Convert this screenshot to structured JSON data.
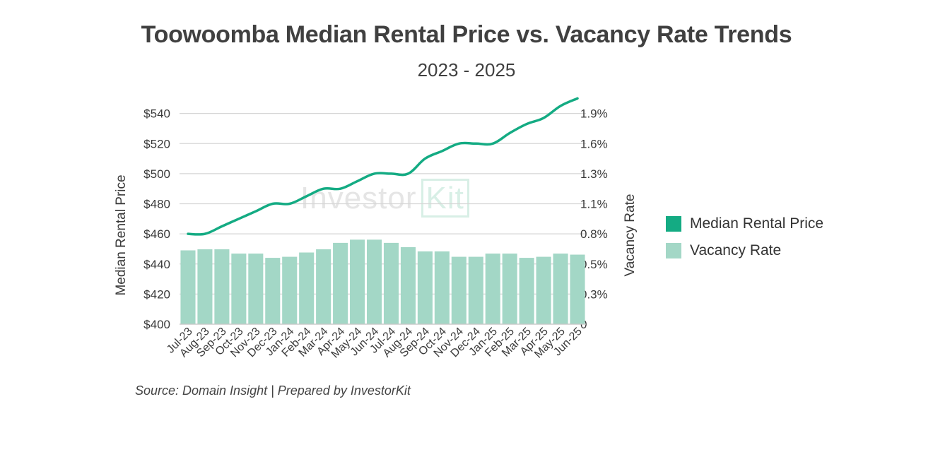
{
  "title": "Toowoomba Median Rental Price vs. Vacancy Rate Trends",
  "subtitle": "2023 - 2025",
  "source": "Source: Domain Insight | Prepared by InvestorKit",
  "watermark": {
    "text1": "Investor",
    "text2": "Kit"
  },
  "colors": {
    "line": "#14ab83",
    "bar": "#a3d7c6",
    "grid": "#d6d6d6",
    "text": "#3a3a3a"
  },
  "legend": [
    {
      "label": "Median Rental Price",
      "color": "#14ab83"
    },
    {
      "label": "Vacancy Rate",
      "color": "#a3d7c6"
    }
  ],
  "chart_data": {
    "type": "bar+line",
    "title": "Toowoomba Median Rental Price vs. Vacancy Rate Trends",
    "subtitle": "2023 - 2025",
    "categories": [
      "Jul-23",
      "Aug-23",
      "Sep-23",
      "Oct-23",
      "Nov-23",
      "Dec-23",
      "Jan-24",
      "Feb-24",
      "Mar-24",
      "Apr-24",
      "May-24",
      "Jun-24",
      "Jul-24",
      "Aug-24",
      "Sep-24",
      "Oct-24",
      "Nov-24",
      "Dec-24",
      "Jan-25",
      "Feb-25",
      "Mar-25",
      "Apr-25",
      "May-25",
      "Jun-25"
    ],
    "series": [
      {
        "name": "Median Rental Price",
        "type": "line",
        "axis": "left",
        "values": [
          460,
          460,
          465,
          470,
          475,
          480,
          480,
          485,
          490,
          490,
          495,
          500,
          500,
          500,
          510,
          515,
          520,
          520,
          520,
          527,
          533,
          537,
          545,
          550
        ]
      },
      {
        "name": "Vacancy Rate",
        "type": "bar",
        "axis": "right",
        "values": [
          0.69,
          0.7,
          0.7,
          0.66,
          0.66,
          0.62,
          0.63,
          0.67,
          0.7,
          0.76,
          0.79,
          0.79,
          0.76,
          0.72,
          0.68,
          0.68,
          0.63,
          0.63,
          0.66,
          0.66,
          0.62,
          0.63,
          0.66,
          0.65
        ]
      }
    ],
    "ylabel": "Median Rental Price",
    "y2label": "Vacancy Rate",
    "ylim": [
      400,
      545
    ],
    "y2lim": [
      0,
      2.04
    ],
    "left_ticks": [
      {
        "v": 400,
        "label": "$400"
      },
      {
        "v": 420,
        "label": "$420"
      },
      {
        "v": 440,
        "label": "$440"
      },
      {
        "v": 460,
        "label": "$460"
      },
      {
        "v": 480,
        "label": "$480"
      },
      {
        "v": 500,
        "label": "$500"
      },
      {
        "v": 520,
        "label": "$520"
      },
      {
        "v": 540,
        "label": "$540"
      }
    ],
    "right_ticks": [
      "0",
      "0.3%",
      "0.5%",
      "0.8%",
      "1.1%",
      "1.3%",
      "1.6%",
      "1.9%"
    ],
    "grid": true,
    "legend_position": "right"
  }
}
